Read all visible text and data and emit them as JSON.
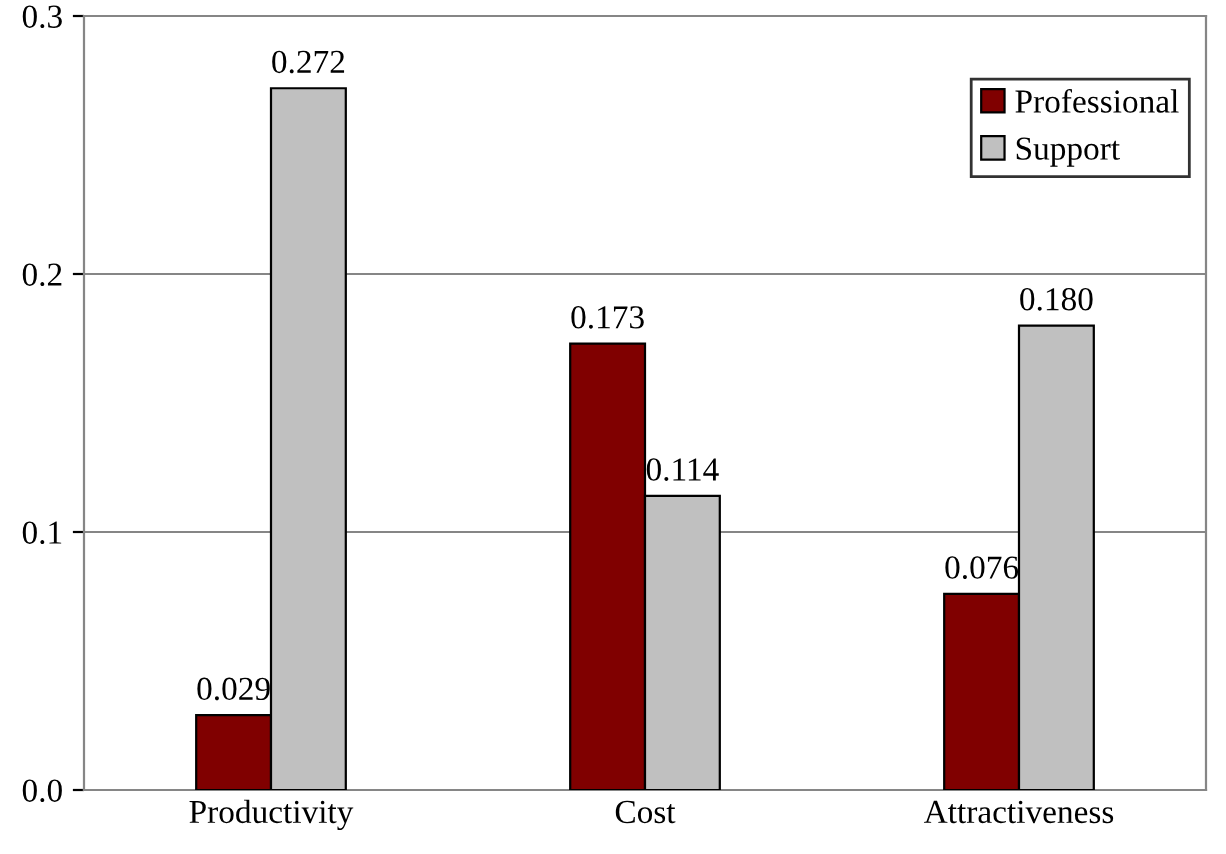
{
  "chart_data": {
    "type": "bar",
    "categories": [
      "Productivity",
      "Cost",
      "Attractiveness"
    ],
    "series": [
      {
        "name": "Professional",
        "color": "#800000",
        "values": [
          0.029,
          0.173,
          0.076
        ],
        "value_labels": [
          "0.029",
          "0.173",
          "0.076"
        ]
      },
      {
        "name": "Support",
        "color": "#c0c0c0",
        "values": [
          0.272,
          0.114,
          0.18
        ],
        "value_labels": [
          "0.272",
          "0.114",
          "0.180"
        ]
      }
    ],
    "ylim": [
      0,
      0.3
    ],
    "yticks": [
      {
        "value": 0,
        "label": "0.0"
      },
      {
        "value": 0.1,
        "label": "0.1"
      },
      {
        "value": 0.2,
        "label": "0.2"
      },
      {
        "value": 0.3,
        "label": "0.3"
      }
    ],
    "grid": "y",
    "legend": "top right"
  }
}
